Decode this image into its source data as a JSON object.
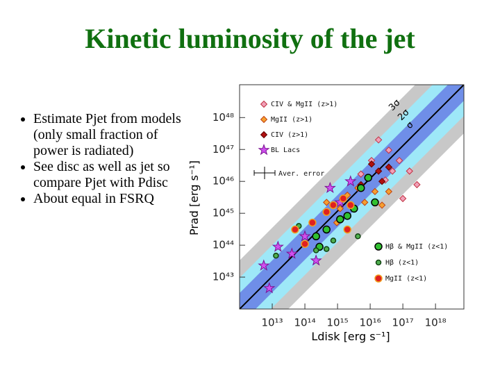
{
  "title": "Kinetic luminosity of the jet",
  "bullets": [
    "Estimate Pjet from models (only small fraction of power is radiated)",
    "See disc as well as jet so compare Pjet with Pdisc",
    "About equal in FSRQ"
  ],
  "chart_data": {
    "type": "scatter",
    "x_label": "Ldisk [erg s⁻¹]",
    "y_label": "Prad [erg s⁻¹]",
    "xscale": "log",
    "yscale": "log",
    "xlim": [
      1000000000000.0,
      7.4e+18
    ],
    "ylim": [
      1e+42,
      1.07e+49
    ],
    "xticks": [
      {
        "value": 10000000000000.0,
        "label": "10¹³"
      },
      {
        "value": 100000000000000.0,
        "label": "10¹⁴"
      },
      {
        "value": 1000000000000000.0,
        "label": "10¹⁵"
      },
      {
        "value": 1e+16,
        "label": "10¹⁶"
      },
      {
        "value": 1e+17,
        "label": "10¹⁷"
      },
      {
        "value": 1e+18,
        "label": "10¹⁸"
      }
    ],
    "yticks": [
      {
        "value": 1e+43,
        "label": "10⁴³"
      },
      {
        "value": 1e+44,
        "label": "10⁴⁴"
      },
      {
        "value": 1e+45,
        "label": "10⁴⁵"
      },
      {
        "value": 1e+46,
        "label": "10⁴⁶"
      },
      {
        "value": 1e+47,
        "label": "10⁴⁷"
      },
      {
        "value": 1e+48,
        "label": "10⁴⁸"
      }
    ],
    "annotations": [
      "3σ",
      "2σ",
      "σ",
      "Aver. error"
    ],
    "series": [
      {
        "name": "CIV & MgII (z>1)",
        "color": "#f0a0b8",
        "edge": "#c03040",
        "marker": "diamond",
        "x": [
          1.8e+16,
          3.7e+16,
          7.8e+16,
          1.6e+17,
          2.7e+17,
          4.8e+16,
          2.9e+16,
          1e+17,
          5200000000000000.0,
          1.1e+16
        ],
        "y": [
          2e+47,
          9.5e+46,
          4.5e+46,
          2.1e+46,
          7.9e+45,
          2.1e+46,
          1.1e+46,
          2.9e+45,
          1.7e+46,
          4.5e+46
        ]
      },
      {
        "name": "MgII (z>1)",
        "color": "#f5a030",
        "edge": "#c04010",
        "marker": "diamond",
        "x": [
          2000000000000000.0,
          3200000000000000.0,
          6800000000000000.0,
          1.4e+16,
          2.3e+16,
          1200000000000000.0,
          4200000000000000.0,
          3.7e+16,
          460000000000000.0,
          950000000000000.0
        ],
        "y": [
          3.7e+45,
          1.4e+45,
          2.2e+45,
          4.8e+45,
          1.8e+45,
          1.4e+45,
          6.2e+45,
          4.8e+45,
          2.2e+45,
          5.1e+44
        ]
      },
      {
        "name": "CIV (z>1)",
        "color": "#b01010",
        "edge": "#600000",
        "marker": "diamond",
        "x": [
          1.1e+16,
          1.8e+16,
          2.3e+16,
          8700000000000000.0,
          3.7e+16,
          5200000000000000.0
        ],
        "y": [
          3.5e+46,
          2.1e+46,
          1e+46,
          1.3e+46,
          2.8e+46,
          7.9e+45
        ]
      },
      {
        "name": "BL Lacs",
        "color": "#d050f0",
        "edge": "#7a1090",
        "marker": "star",
        "x": [
          5500000000000.0,
          8100000000000.0,
          15000000000000.0,
          40000000000000.0,
          220000000000000.0,
          590000000000000.0,
          1200000000000000.0,
          100000000000000.0,
          2500000000000000.0
        ],
        "y": [
          2.3e+43,
          4.5e+42,
          8.9e+43,
          5.4e+43,
          3.3e+43,
          6.2e+45,
          2.2e+45,
          1.9e+44,
          1e+46
        ]
      },
      {
        "name": "Hβ & MgII (z<1)",
        "color": "#30c030",
        "edge": "#000000",
        "marker": "circle",
        "x": [
          220000000000000.0,
          460000000000000.0,
          1200000000000000.0,
          2000000000000000.0,
          3200000000000000.0,
          5200000000000000.0,
          1.4e+16,
          280000000000000.0,
          8700000000000000.0
        ],
        "y": [
          1.9e+44,
          3.1e+44,
          6.5e+44,
          8.3e+44,
          1.4e+45,
          6.2e+45,
          2.2e+45,
          8.9e+43,
          1.3e+46
        ]
      },
      {
        "name": "Hβ (z<1)",
        "color": "#50b050",
        "edge": "#104010",
        "marker": "small-circle",
        "x": [
          13000000000000.0,
          220000000000000.0,
          460000000000000.0,
          4200000000000000.0,
          740000000000000.0,
          65000000000000.0
        ],
        "y": [
          4.7e+43,
          6.9e+43,
          7.6e+43,
          1.9e+44,
          1.4e+44,
          4e+44
        ]
      },
      {
        "name": "MgII (z<1)",
        "color": "#e02020",
        "edge": "#f0a020",
        "marker": "circle",
        "x": [
          50000000000000.0,
          170000000000000.0,
          460000000000000.0,
          740000000000000.0,
          1500000000000000.0,
          2500000000000000.0,
          100000000000000.0,
          2000000000000000.0
        ],
        "y": [
          3.1e+44,
          5.1e+44,
          1.1e+45,
          1.8e+45,
          2.9e+45,
          1.8e+45,
          1.1e+44,
          3.1e+44
        ]
      }
    ]
  }
}
